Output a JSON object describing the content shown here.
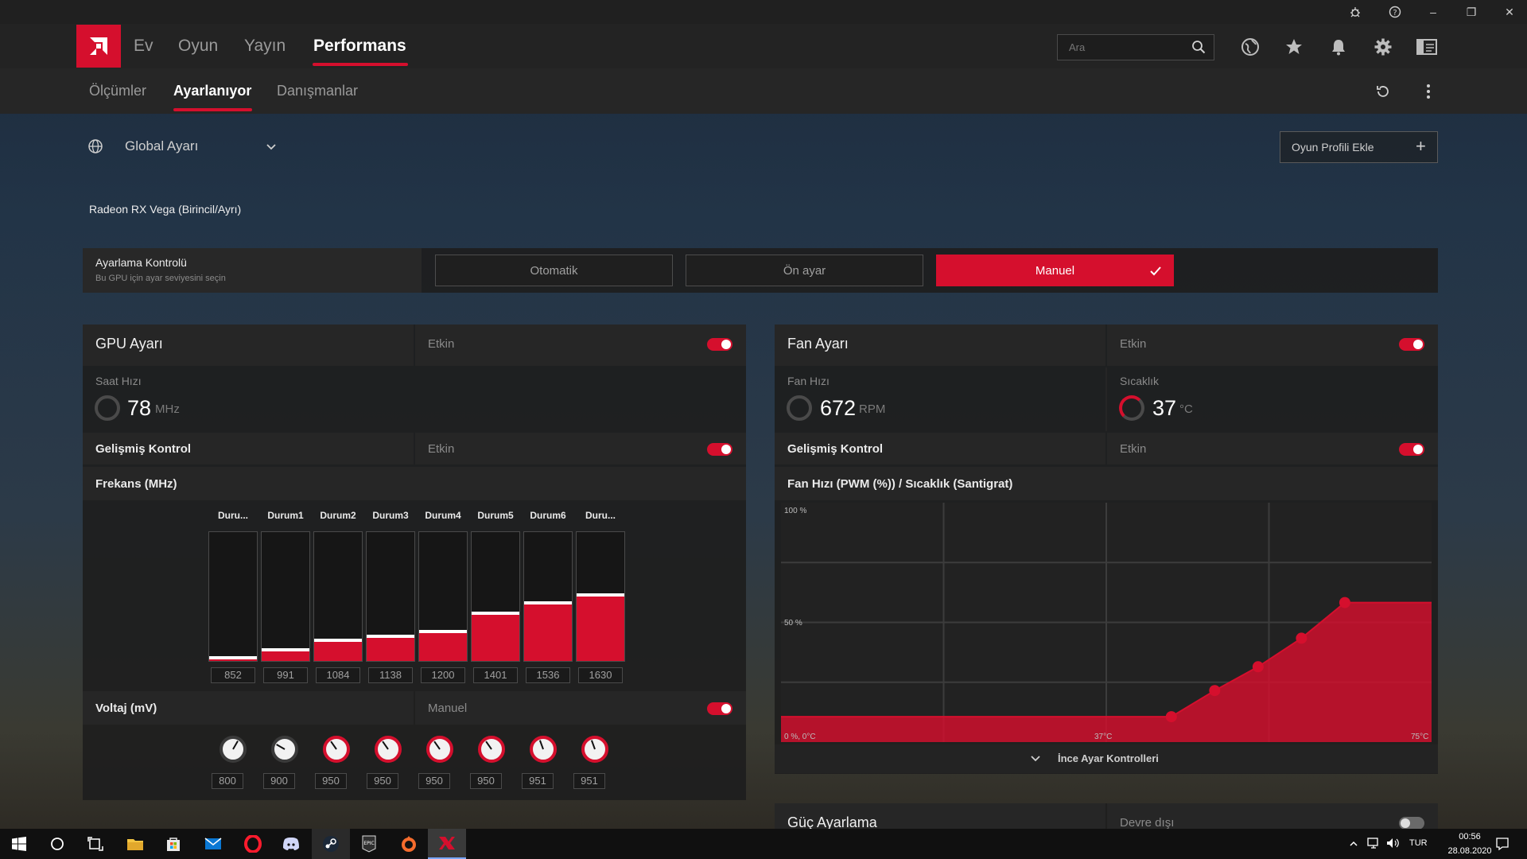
{
  "window": {
    "minimize_icon": "–",
    "restore_icon": "❐",
    "close_icon": "✕"
  },
  "nav": {
    "tabs": [
      "Ev",
      "Oyun",
      "Yayın",
      "Performans"
    ],
    "active": "Performans"
  },
  "search": {
    "placeholder": "Ara"
  },
  "subnav": {
    "tabs": [
      "Ölçümler",
      "Ayarlanıyor",
      "Danışmanlar"
    ],
    "active": "Ayarlanıyor"
  },
  "profile": {
    "selected": "Global Ayarı",
    "add_label": "Oyun Profili Ekle"
  },
  "gpu_name": "Radeon RX Vega (Birincil/Ayrı)",
  "tuning_control": {
    "title": "Ayarlama Kontrolü",
    "subtitle": "Bu GPU için ayar seviyesini seçin",
    "options": [
      "Otomatik",
      "Ön ayar",
      "Manuel"
    ],
    "selected": "Manuel"
  },
  "gpu": {
    "title": "GPU Ayarı",
    "enabled_label": "Etkin",
    "enabled": true,
    "clock_label": "Saat Hızı",
    "clock_value": "78",
    "clock_unit": "MHz",
    "advanced_label": "Gelişmiş Kontrol",
    "advanced_state": "Etkin",
    "advanced_enabled": true,
    "freq_title": "Frekans (MHz)",
    "states": [
      "Duru...",
      "Durum1",
      "Durum2",
      "Durum3",
      "Durum4",
      "Durum5",
      "Durum6",
      "Duru..."
    ],
    "frequencies": [
      "852",
      "991",
      "1084",
      "1138",
      "1200",
      "1401",
      "1536",
      "1630"
    ],
    "freq_fill_fraction": [
      0.02,
      0.1,
      0.17,
      0.2,
      0.24,
      0.38,
      0.46,
      0.52
    ],
    "voltage_title": "Voltaj (mV)",
    "voltage_mode": "Manuel",
    "voltage_enabled": true,
    "voltages": [
      "800",
      "900",
      "950",
      "950",
      "950",
      "950",
      "951",
      "951"
    ]
  },
  "fan": {
    "title": "Fan Ayarı",
    "enabled_label": "Etkin",
    "enabled": true,
    "speed_label": "Fan Hızı",
    "speed_value": "672",
    "speed_unit": "RPM",
    "temp_label": "Sıcaklık",
    "temp_value": "37",
    "temp_unit": "°C",
    "advanced_label": "Gelişmiş Kontrol",
    "advanced_state": "Etkin",
    "advanced_enabled": true,
    "curve_title": "Fan Hızı (PWM (%)) / Sıcaklık (Santigrat)",
    "fine_tune_label": "İnce Ayar Kontrolleri"
  },
  "power": {
    "title": "Güç Ayarlama",
    "state": "Devre dışı",
    "enabled": false
  },
  "chart_data": {
    "type": "area",
    "title": "Fan Hızı (PWM (%)) / Sıcaklık (Santigrat)",
    "ytick_labels": [
      "100 %",
      "50 %",
      "0 %, 0°C"
    ],
    "xtick_labels": [
      "37°C",
      "75°C"
    ],
    "xlim": [
      0,
      75
    ],
    "ylim": [
      0,
      100
    ],
    "x": [
      45,
      50,
      55,
      60,
      65
    ],
    "values": [
      10,
      21,
      31,
      43,
      58
    ],
    "tail_value": 58,
    "accent": "#d50f2d",
    "grid": true
  },
  "taskbar": {
    "lang": "TUR",
    "time": "00:56",
    "date": "28.08.2020",
    "icons": [
      "windows-start-icon",
      "search-circle-icon",
      "task-view-icon",
      "file-explorer-icon",
      "store-icon",
      "mail-icon",
      "opera-icon",
      "discord-icon",
      "steam-icon",
      "epic-games-icon",
      "origin-icon",
      "radeon-icon"
    ]
  },
  "colors": {
    "accent": "#d50f2d",
    "panel": "#1e1e1e",
    "nav_bg": "#232323"
  }
}
